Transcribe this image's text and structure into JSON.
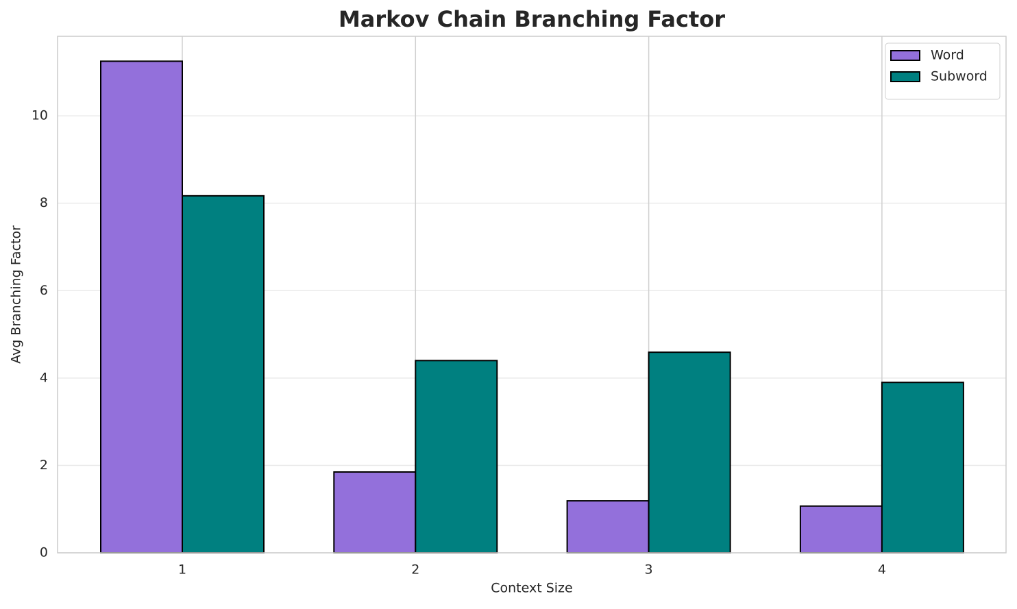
{
  "chart_data": {
    "type": "bar",
    "title": "Markov Chain Branching Factor",
    "x_label": "Context Size",
    "y_label": "Avg Branching Factor",
    "categories": [
      "1",
      "2",
      "3",
      "4"
    ],
    "series": [
      {
        "name": "Word",
        "color": "#9370db",
        "values": [
          11.25,
          1.85,
          1.19,
          1.07
        ]
      },
      {
        "name": "Subword",
        "color": "#008080",
        "values": [
          8.17,
          4.4,
          4.59,
          3.9
        ]
      }
    ],
    "ylim": [
      0,
      11.82
    ],
    "yticks": [
      0,
      2,
      4,
      6,
      8,
      10
    ],
    "grid": true,
    "legend": "upper right"
  }
}
